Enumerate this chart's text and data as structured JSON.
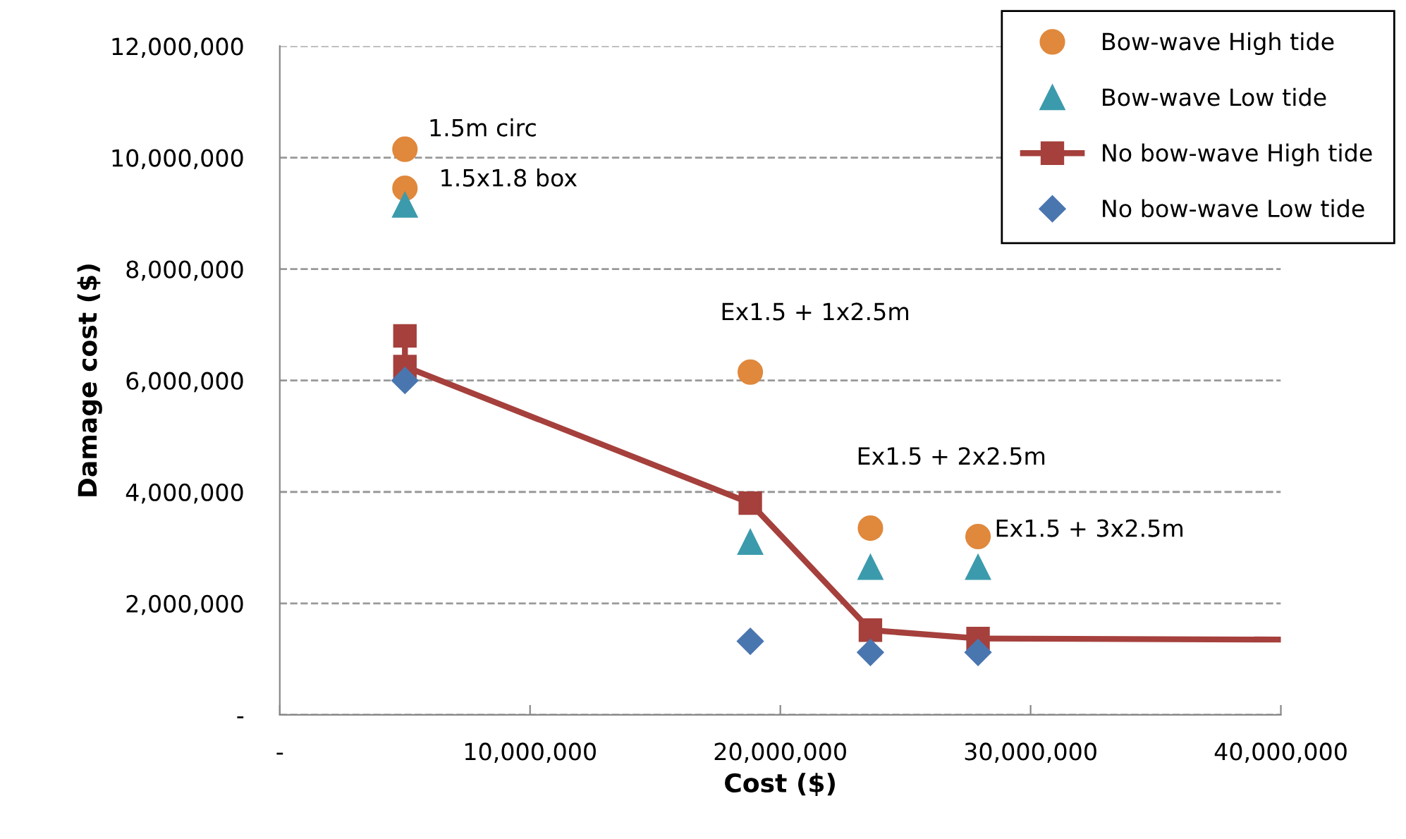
{
  "chart_data": {
    "type": "scatter",
    "xlabel": "Cost ($)",
    "ylabel": "Damage cost ($)",
    "xlim": [
      0,
      40000000
    ],
    "ylim": [
      0,
      12000000
    ],
    "xticks": [
      {
        "value": 0,
        "label": "-"
      },
      {
        "value": 10000000,
        "label": "10,000,000"
      },
      {
        "value": 20000000,
        "label": "20,000,000"
      },
      {
        "value": 30000000,
        "label": "30,000,000"
      },
      {
        "value": 40000000,
        "label": "40,000,000"
      }
    ],
    "yticks": [
      {
        "value": 0,
        "label": "-"
      },
      {
        "value": 2000000,
        "label": "2,000,000"
      },
      {
        "value": 4000000,
        "label": "4,000,000"
      },
      {
        "value": 6000000,
        "label": "6,000,000"
      },
      {
        "value": 8000000,
        "label": "8,000,000"
      },
      {
        "value": 10000000,
        "label": "10,000,000"
      },
      {
        "value": 12000000,
        "label": "12,000,000"
      }
    ],
    "grid": "y",
    "legend": "top right",
    "series": [
      {
        "name": "Bow-wave High tide",
        "marker": "circle",
        "color": "#e0883c",
        "x": [
          5000000,
          5000000,
          18800000,
          23600000,
          27900000
        ],
        "values": [
          10150000,
          9450000,
          6150000,
          3350000,
          3200000
        ]
      },
      {
        "name": "Bow-wave Low tide",
        "marker": "triangle",
        "color": "#3b9bac",
        "x": [
          5000000,
          18800000,
          23600000,
          27900000
        ],
        "values": [
          9150000,
          3100000,
          2650000,
          2650000
        ]
      },
      {
        "name": "No bow-wave High tide",
        "type": "line",
        "marker": "square",
        "color": "#a5403c",
        "x": [
          5000000,
          5000000,
          18800000,
          23600000,
          27900000
        ],
        "values": [
          6800000,
          6250000,
          3800000,
          1520000,
          1370000
        ]
      },
      {
        "type": "line",
        "marker": "none",
        "color": "#a5403c",
        "x": [
          27900000,
          40000000
        ],
        "values": [
          1370000,
          1350000
        ]
      },
      {
        "name": "No bow-wave Low tide",
        "marker": "diamond",
        "color": "#4a76b0",
        "x": [
          5000000,
          18800000,
          23600000,
          27900000
        ],
        "values": [
          6000000,
          1320000,
          1120000,
          1120000
        ]
      }
    ],
    "annotations": [
      "1.5m circ",
      "1.5x1.8 box",
      "Ex1.5 + 1x2.5m",
      "Ex1.5 + 2x2.5m",
      "Ex1.5 + 3x2.5m"
    ]
  }
}
